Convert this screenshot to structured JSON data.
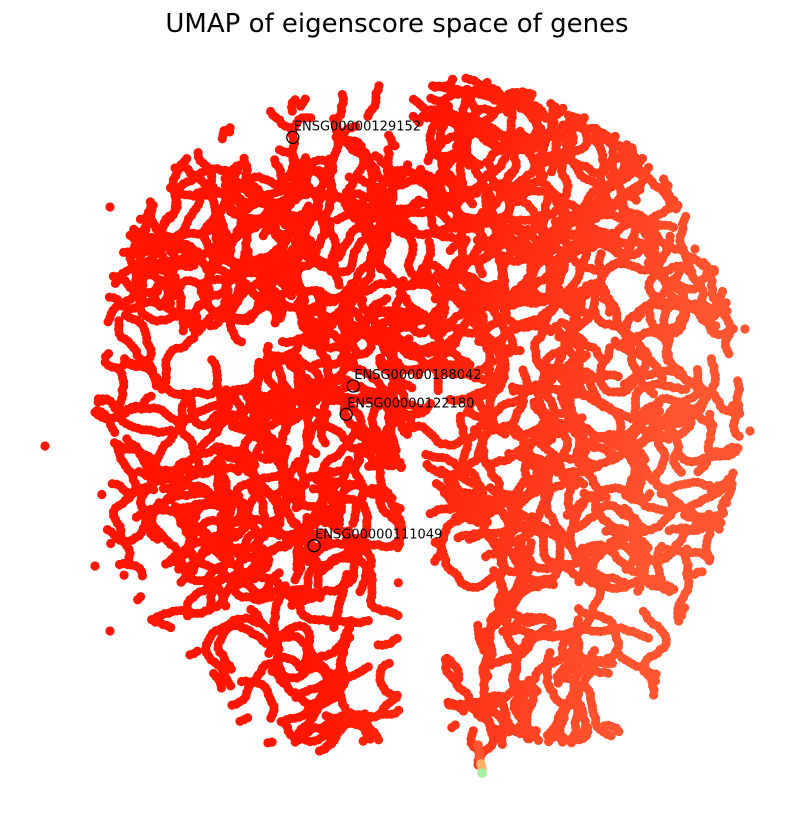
{
  "chart_data": {
    "type": "scatter",
    "title": "UMAP of eigenscore space of genes",
    "xlabel": "",
    "ylabel": "",
    "axes_visible": false,
    "grid": false,
    "legend": "none",
    "xlim": [
      0,
      10
    ],
    "ylim": [
      0,
      10
    ],
    "colormap": "rainbow",
    "colors": {
      "deep_red": "#ff1500",
      "red": "#ff2a10",
      "orange_red": "#ff5530",
      "light_orange": "#ffb366",
      "pale_green": "#a0f0a0"
    },
    "highlighted_genes": [
      {
        "label": "ENSG00000129152",
        "x": 3.55,
        "y": 9.05
      },
      {
        "label": "ENSG00000188042",
        "x": 4.4,
        "y": 5.55
      },
      {
        "label": "ENSG00000122180",
        "x": 4.3,
        "y": 5.15
      },
      {
        "label": "ENSG00000111049",
        "x": 3.85,
        "y": 3.3
      }
    ]
  }
}
